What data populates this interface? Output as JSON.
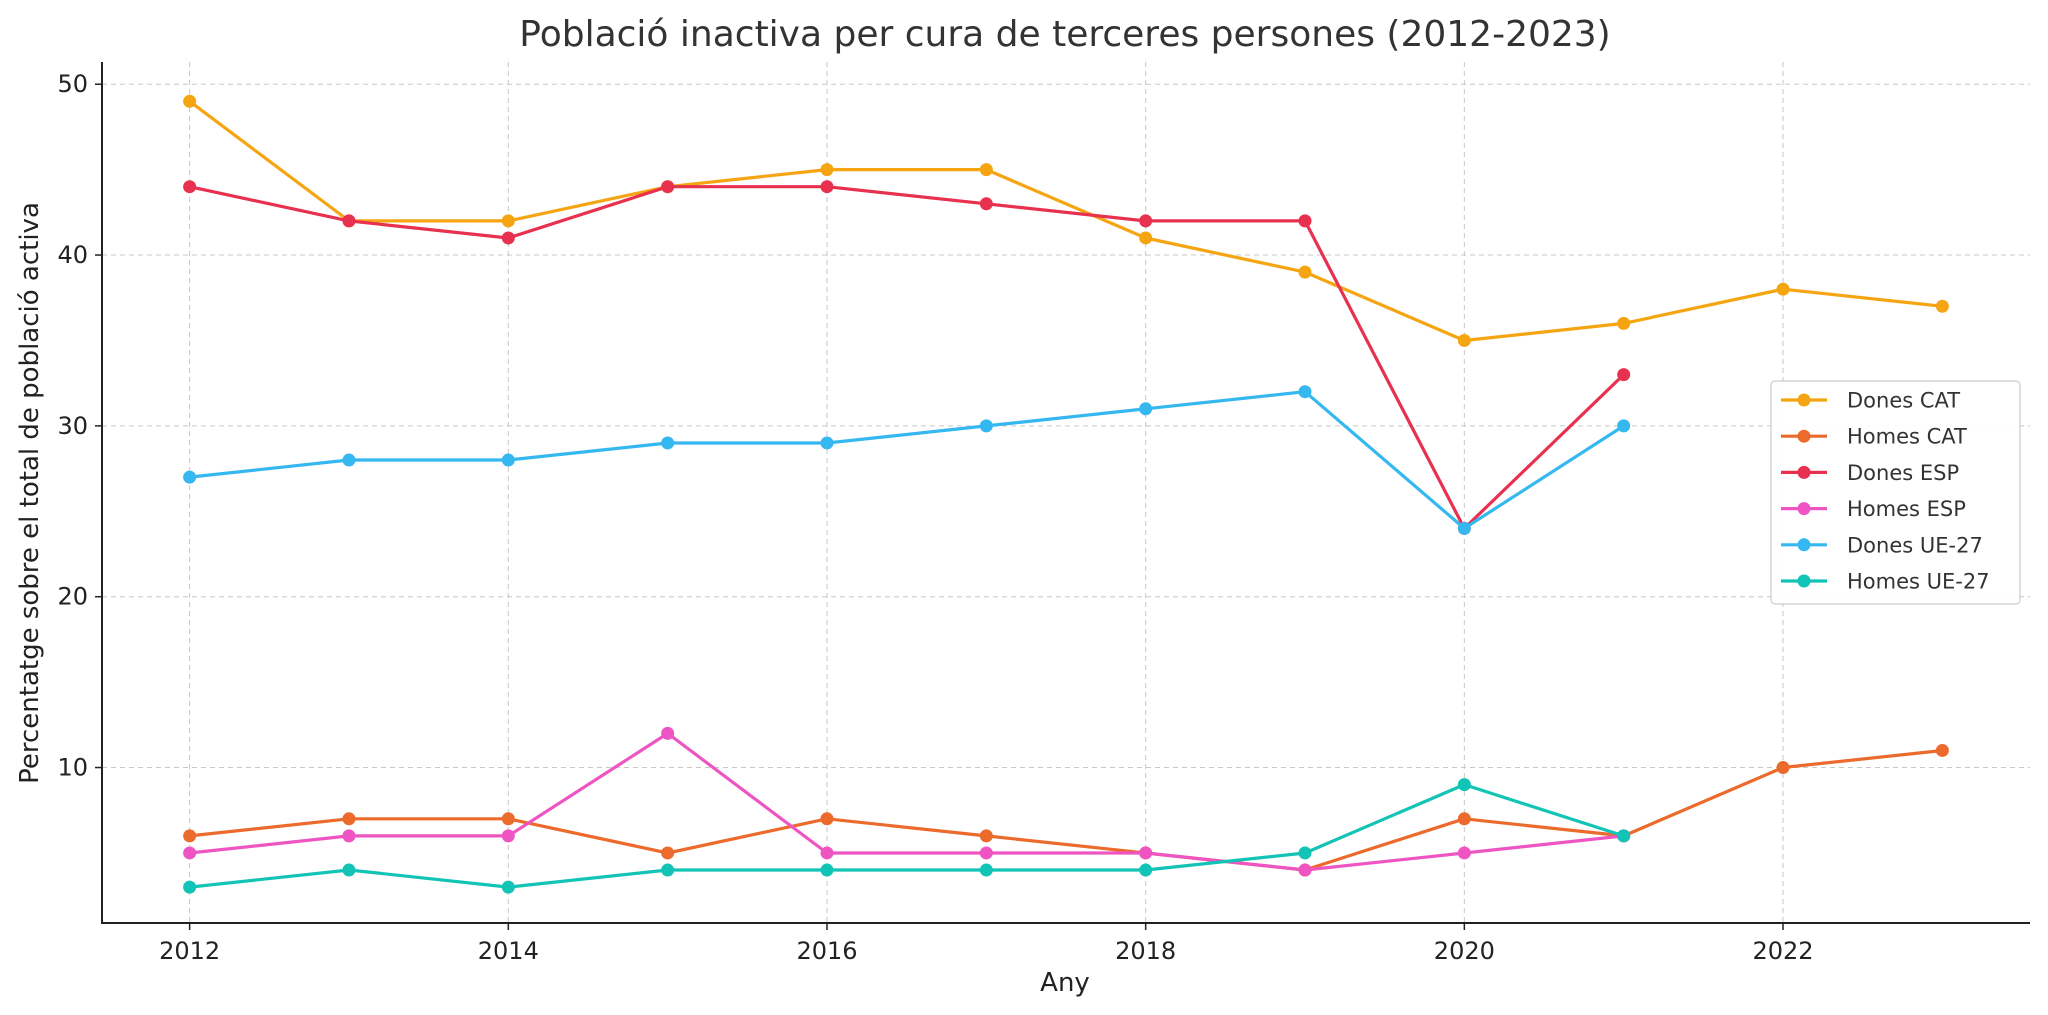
{
  "chart_data": {
    "type": "line",
    "title": "Població inactiva per cura de terceres persones (2012-2023)",
    "xlabel": "Any",
    "ylabel": "Percentatge sobre el total de població activa",
    "xlim": [
      2011.45,
      2023.55
    ],
    "ylim": [
      0.9,
      51.3
    ],
    "xticks": [
      2012,
      2014,
      2016,
      2018,
      2020,
      2022
    ],
    "yticks": [
      10,
      20,
      30,
      40,
      50
    ],
    "grid": true,
    "legend_position": "center-right",
    "series": [
      {
        "name": "Dones CAT",
        "color": "#F5A511",
        "x": [
          2012,
          2013,
          2014,
          2015,
          2016,
          2017,
          2018,
          2019,
          2020,
          2021,
          2022,
          2023
        ],
        "y": [
          49,
          42,
          42,
          44,
          45,
          45,
          41,
          39,
          35,
          36,
          38,
          37
        ]
      },
      {
        "name": "Homes CAT",
        "color": "#EC6A2B",
        "x": [
          2012,
          2013,
          2014,
          2015,
          2016,
          2017,
          2018,
          2019,
          2020,
          2021,
          2022,
          2023
        ],
        "y": [
          6,
          7,
          7,
          5,
          7,
          6,
          5,
          4,
          7,
          6,
          10,
          11
        ]
      },
      {
        "name": "Dones ESP",
        "color": "#E8304F",
        "x": [
          2012,
          2013,
          2014,
          2015,
          2016,
          2017,
          2018,
          2019,
          2020,
          2021
        ],
        "y": [
          44,
          42,
          41,
          44,
          44,
          43,
          42,
          42,
          24,
          33
        ]
      },
      {
        "name": "Homes ESP",
        "color": "#EE55C2",
        "x": [
          2012,
          2013,
          2014,
          2015,
          2016,
          2017,
          2018,
          2019,
          2020,
          2021
        ],
        "y": [
          5,
          6,
          6,
          12,
          5,
          5,
          5,
          4,
          5,
          6
        ]
      },
      {
        "name": "Dones UE-27",
        "color": "#35B8F0",
        "x": [
          2012,
          2013,
          2014,
          2015,
          2016,
          2017,
          2018,
          2019,
          2020,
          2021
        ],
        "y": [
          27,
          28,
          28,
          29,
          29,
          30,
          31,
          32,
          24,
          30
        ]
      },
      {
        "name": "Homes UE-27",
        "color": "#12C4B5",
        "x": [
          2012,
          2013,
          2014,
          2015,
          2016,
          2017,
          2018,
          2019,
          2020,
          2021
        ],
        "y": [
          3,
          4,
          3,
          4,
          4,
          4,
          4,
          5,
          9,
          6
        ]
      }
    ]
  }
}
